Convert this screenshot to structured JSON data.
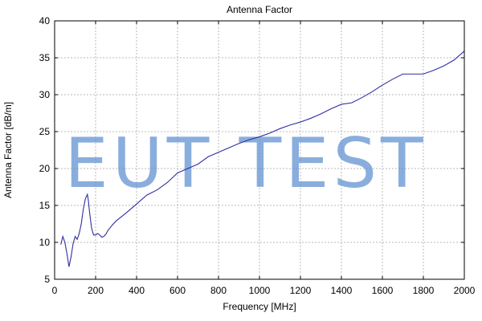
{
  "chart_data": {
    "type": "line",
    "title": "Antenna Factor",
    "xlabel": "Frequency [MHz]",
    "ylabel": "Antenna Factor [dB/m]",
    "xlim": [
      0,
      2000
    ],
    "ylim": [
      5,
      40
    ],
    "xticks": [
      0,
      200,
      400,
      600,
      800,
      1000,
      1200,
      1400,
      1600,
      1800,
      2000
    ],
    "yticks": [
      5,
      10,
      15,
      20,
      25,
      30,
      35,
      40
    ],
    "grid": true,
    "series": [
      {
        "x": [
          30,
          40,
          50,
          60,
          70,
          80,
          90,
          100,
          110,
          120,
          130,
          140,
          150,
          160,
          165,
          170,
          180,
          190,
          200,
          210,
          220,
          230,
          240,
          250,
          260,
          280,
          300,
          350,
          400,
          450,
          500,
          550,
          600,
          650,
          700,
          750,
          800,
          850,
          900,
          950,
          1000,
          1050,
          1100,
          1150,
          1200,
          1250,
          1300,
          1350,
          1400,
          1450,
          1500,
          1550,
          1600,
          1650,
          1700,
          1750,
          1800,
          1850,
          1900,
          1950,
          2000
        ],
        "y": [
          9.7,
          10.8,
          10.0,
          8.5,
          6.7,
          8.0,
          9.8,
          10.8,
          10.4,
          11.2,
          12.5,
          14.5,
          15.9,
          16.5,
          15.6,
          14.2,
          12.0,
          11.0,
          11.0,
          11.2,
          11.0,
          10.7,
          10.8,
          11.1,
          11.6,
          12.3,
          12.9,
          14.0,
          15.2,
          16.4,
          17.1,
          18.1,
          19.4,
          20.0,
          20.6,
          21.6,
          22.2,
          22.8,
          23.4,
          23.9,
          24.3,
          24.8,
          25.4,
          25.9,
          26.3,
          26.8,
          27.4,
          28.1,
          28.7,
          28.9,
          29.6,
          30.4,
          31.3,
          32.1,
          32.8,
          32.8,
          32.8,
          33.3,
          33.9,
          34.7,
          35.9
        ]
      }
    ],
    "watermark": "EUT TEST"
  }
}
